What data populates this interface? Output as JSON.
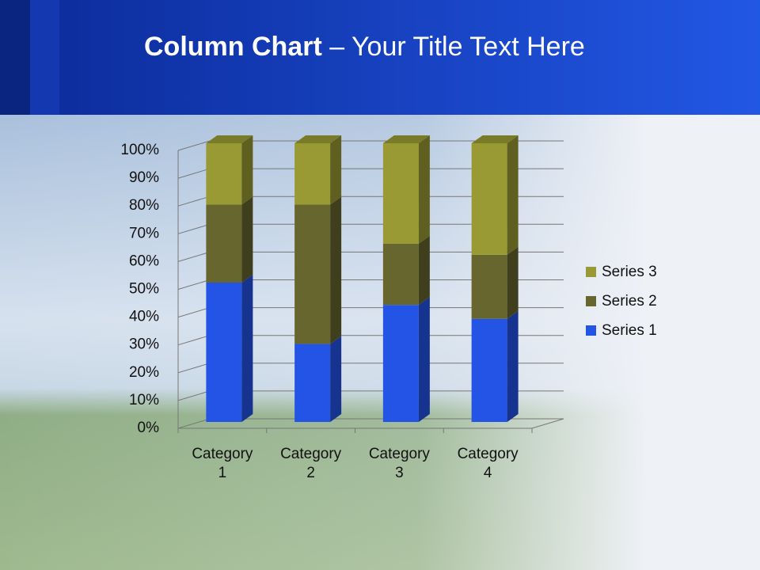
{
  "slide": {
    "title_bold": "Column Chart",
    "title_rest": "– Your Title Text Here"
  },
  "chart_data": {
    "type": "bar",
    "stacked": true,
    "categories": [
      "Category 1",
      "Category 2",
      "Category 3",
      "Category 4"
    ],
    "series": [
      {
        "name": "Series 1",
        "color": "#2454e6",
        "values": [
          50,
          28,
          42,
          37
        ]
      },
      {
        "name": "Series 2",
        "color": "#67662e",
        "values": [
          28,
          50,
          22,
          23
        ]
      },
      {
        "name": "Series 3",
        "color": "#999a33",
        "values": [
          22,
          22,
          36,
          40
        ]
      }
    ],
    "ylim": [
      0,
      100
    ],
    "yticks": [
      {
        "value": 0,
        "label": "0%"
      },
      {
        "value": 10,
        "label": "10%"
      },
      {
        "value": 20,
        "label": "20%"
      },
      {
        "value": 30,
        "label": "30%"
      },
      {
        "value": 40,
        "label": "40%"
      },
      {
        "value": 50,
        "label": "50%"
      },
      {
        "value": 60,
        "label": "60%"
      },
      {
        "value": 70,
        "label": "70%"
      },
      {
        "value": 80,
        "label": "80%"
      },
      {
        "value": 90,
        "label": "90%"
      },
      {
        "value": 100,
        "label": "100%"
      }
    ],
    "grid": true,
    "legend": "right"
  }
}
